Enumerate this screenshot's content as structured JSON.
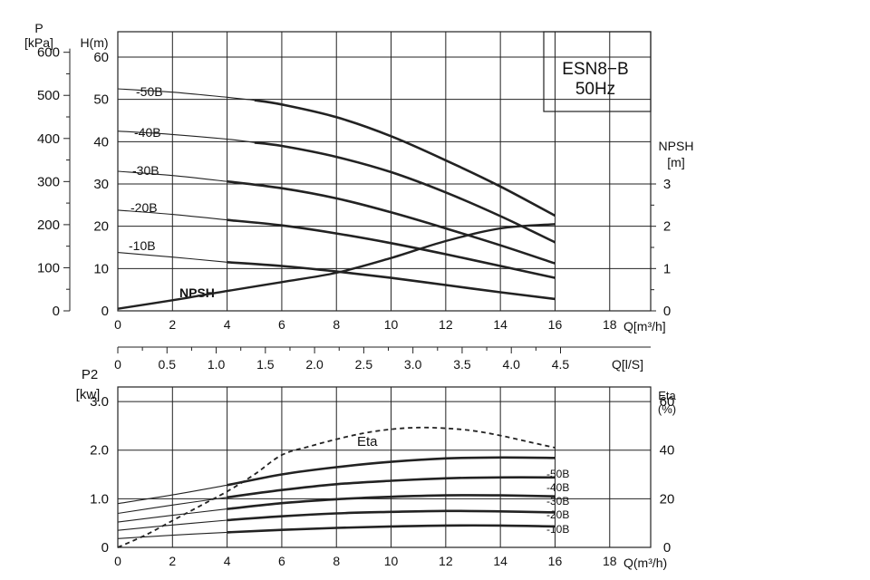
{
  "title": {
    "model": "ESN8−B",
    "freq": "50Hz"
  },
  "chart_data": [
    {
      "type": "line",
      "name": "head",
      "x_label": "Q[m³/h]",
      "x_ticks": [
        "0",
        "2",
        "4",
        "6",
        "8",
        "10",
        "12",
        "14",
        "16",
        "18"
      ],
      "x_range": [
        0,
        19.5
      ],
      "y_left_label": "H(m)",
      "y_left_ticks": [
        "0",
        "10",
        "20",
        "30",
        "40",
        "50",
        "60"
      ],
      "y_left_range": [
        0,
        66
      ],
      "y_left2_label_1": "P",
      "y_left2_label_2": "[kPa]",
      "y_left2_ticks": [
        "0",
        "100",
        "200",
        "300",
        "400",
        "500",
        "600"
      ],
      "y_right_label_1": "NPSH",
      "y_right_label_2": "[m]",
      "y_right_ticks": [
        "0",
        "1",
        "2",
        "3"
      ],
      "y_right_range": [
        0,
        6.6
      ],
      "series": [
        {
          "name": "-50B",
          "thin": [
            [
              0,
              52.5
            ],
            [
              2,
              51.7
            ],
            [
              4,
              50.5
            ],
            [
              5,
              49.8
            ]
          ],
          "thick": [
            [
              5,
              49.8
            ],
            [
              6,
              48.8
            ],
            [
              8,
              45.8
            ],
            [
              10,
              41.3
            ],
            [
              12,
              35.6
            ],
            [
              14,
              29.4
            ],
            [
              16,
              22.5
            ]
          ]
        },
        {
          "name": "-40B",
          "thin": [
            [
              0,
              42.5
            ],
            [
              2,
              41.7
            ],
            [
              4,
              40.6
            ],
            [
              5,
              39.8
            ]
          ],
          "thick": [
            [
              5,
              39.8
            ],
            [
              6,
              39
            ],
            [
              8,
              36.4
            ],
            [
              10,
              32.8
            ],
            [
              12,
              28
            ],
            [
              14,
              22.4
            ],
            [
              16,
              16.2
            ]
          ]
        },
        {
          "name": "-30B",
          "thin": [
            [
              0,
              33
            ],
            [
              2,
              32
            ],
            [
              4,
              30.6
            ]
          ],
          "thick": [
            [
              4,
              30.6
            ],
            [
              6,
              29
            ],
            [
              8,
              26.6
            ],
            [
              10,
              23.3
            ],
            [
              12,
              19.5
            ],
            [
              14,
              15.5
            ],
            [
              16,
              11.2
            ]
          ]
        },
        {
          "name": "-20B",
          "thin": [
            [
              0,
              23.8
            ],
            [
              2,
              22.8
            ],
            [
              4,
              21.5
            ]
          ],
          "thick": [
            [
              4,
              21.5
            ],
            [
              6,
              20.2
            ],
            [
              8,
              18.3
            ],
            [
              10,
              16
            ],
            [
              12,
              13.4
            ],
            [
              14,
              10.6
            ],
            [
              16,
              7.8
            ]
          ]
        },
        {
          "name": "-10B",
          "thin": [
            [
              0,
              13.8
            ],
            [
              2,
              12.7
            ],
            [
              4,
              11.5
            ]
          ],
          "thick": [
            [
              4,
              11.5
            ],
            [
              6,
              10.6
            ],
            [
              8,
              9.3
            ],
            [
              10,
              7.8
            ],
            [
              12,
              6.1
            ],
            [
              14,
              4.4
            ],
            [
              16,
              2.8
            ]
          ]
        }
      ],
      "npsh": {
        "name": "NPSH",
        "points": [
          [
            0,
            0.05
          ],
          [
            2,
            0.25
          ],
          [
            4,
            0.47
          ],
          [
            6,
            0.68
          ],
          [
            8,
            0.9
          ],
          [
            10,
            1.25
          ],
          [
            12,
            1.65
          ],
          [
            14,
            1.95
          ],
          [
            16,
            2.05
          ]
        ]
      }
    },
    {
      "type": "axis",
      "name": "flow-l-s",
      "x_label": "Q[l/S]",
      "x_ticks": [
        "0",
        "0.5",
        "1.0",
        "1.5",
        "2.0",
        "2.5",
        "3.0",
        "3.5",
        "4.0",
        "4.5"
      ]
    },
    {
      "type": "line",
      "name": "power",
      "x_label": "Q(m³/h)",
      "x_ticks": [
        "0",
        "2",
        "4",
        "6",
        "8",
        "10",
        "12",
        "14",
        "16",
        "18"
      ],
      "x_range": [
        0,
        19.5
      ],
      "y_left_label_1": "P2",
      "y_left_label_2": "[kw]",
      "y_left_ticks": [
        "0",
        "1.0",
        "2.0",
        "3.0"
      ],
      "y_left_range": [
        0,
        3.3
      ],
      "y_right_label_1": "Eta",
      "y_right_label_2": "(%)",
      "y_right_ticks": [
        "0",
        "20",
        "40",
        "60"
      ],
      "y_right_range": [
        0,
        66
      ],
      "series": [
        {
          "name": "-50B",
          "thin": [
            [
              0,
              0.9
            ],
            [
              2,
              1.08
            ],
            [
              4,
              1.28
            ]
          ],
          "thick": [
            [
              4,
              1.28
            ],
            [
              6,
              1.5
            ],
            [
              8,
              1.65
            ],
            [
              10,
              1.76
            ],
            [
              12,
              1.83
            ],
            [
              14,
              1.85
            ],
            [
              16,
              1.84
            ]
          ]
        },
        {
          "name": "-40B",
          "thin": [
            [
              0,
              0.7
            ],
            [
              2,
              0.87
            ],
            [
              4,
              1.03
            ]
          ],
          "thick": [
            [
              4,
              1.03
            ],
            [
              6,
              1.18
            ],
            [
              8,
              1.3
            ],
            [
              10,
              1.37
            ],
            [
              12,
              1.42
            ],
            [
              14,
              1.44
            ],
            [
              16,
              1.44
            ]
          ]
        },
        {
          "name": "-30B",
          "thin": [
            [
              0,
              0.52
            ],
            [
              2,
              0.66
            ],
            [
              4,
              0.79
            ]
          ],
          "thick": [
            [
              4,
              0.79
            ],
            [
              6,
              0.91
            ],
            [
              8,
              0.99
            ],
            [
              10,
              1.04
            ],
            [
              12,
              1.07
            ],
            [
              14,
              1.07
            ],
            [
              16,
              1.05
            ]
          ]
        },
        {
          "name": "-20B",
          "thin": [
            [
              0,
              0.35
            ],
            [
              2,
              0.46
            ],
            [
              4,
              0.56
            ]
          ],
          "thick": [
            [
              4,
              0.56
            ],
            [
              6,
              0.64
            ],
            [
              8,
              0.7
            ],
            [
              10,
              0.73
            ],
            [
              12,
              0.75
            ],
            [
              14,
              0.74
            ],
            [
              16,
              0.72
            ]
          ]
        },
        {
          "name": "-10B",
          "thin": [
            [
              0,
              0.18
            ],
            [
              2,
              0.25
            ],
            [
              4,
              0.31
            ]
          ],
          "thick": [
            [
              4,
              0.31
            ],
            [
              6,
              0.36
            ],
            [
              8,
              0.4
            ],
            [
              10,
              0.43
            ],
            [
              12,
              0.45
            ],
            [
              14,
              0.45
            ],
            [
              16,
              0.43
            ]
          ]
        }
      ],
      "eta": {
        "name": "Eta",
        "points": [
          [
            0,
            0
          ],
          [
            1,
            5
          ],
          [
            2,
            11
          ],
          [
            3,
            17
          ],
          [
            4,
            23
          ],
          [
            5,
            30
          ],
          [
            6,
            38
          ],
          [
            7,
            41.5
          ],
          [
            8,
            44.5
          ],
          [
            9,
            47
          ],
          [
            10,
            48.6
          ],
          [
            11,
            49.3
          ],
          [
            12,
            49
          ],
          [
            13,
            48
          ],
          [
            14,
            46
          ],
          [
            15,
            43.5
          ],
          [
            16,
            41
          ]
        ]
      }
    }
  ]
}
